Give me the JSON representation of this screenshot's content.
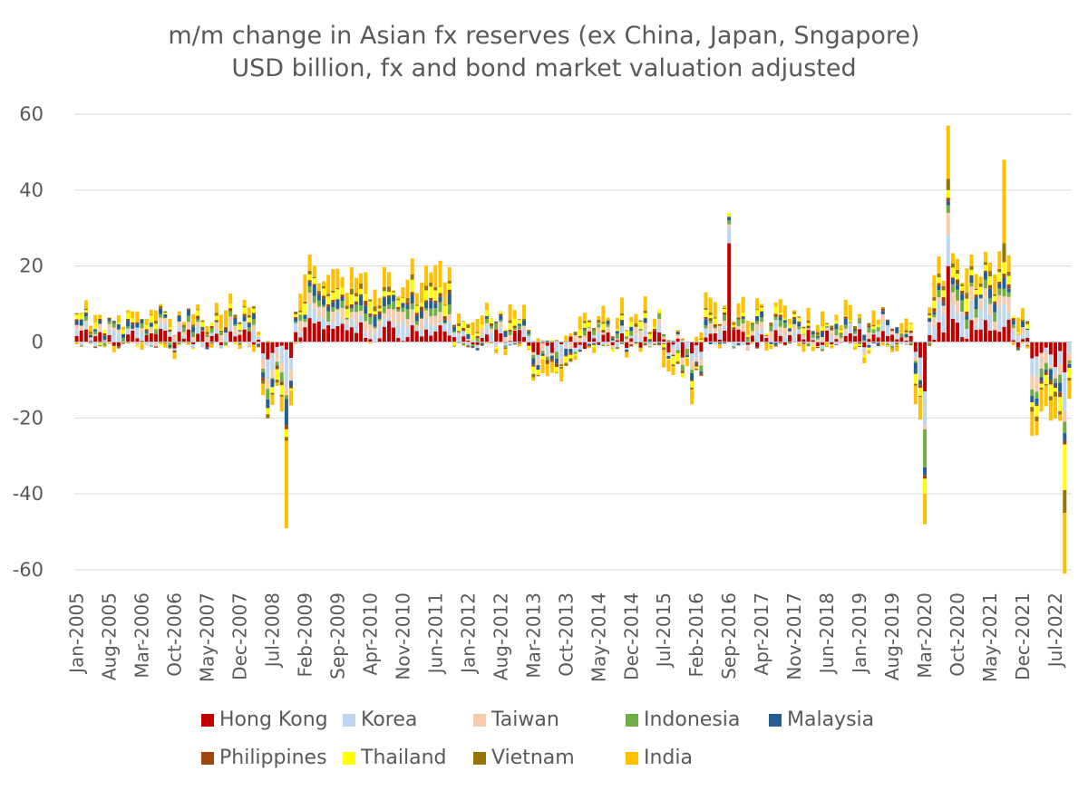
{
  "chart_data": {
    "type": "bar",
    "stacked": true,
    "title": "m/m change in Asian fx reserves (ex China, Japan, Sngapore)",
    "subtitle": "USD billion, fx and bond market valuation adjusted",
    "ylim": [
      -60,
      60
    ],
    "yticks": [
      60,
      40,
      20,
      0,
      -20,
      -40,
      -60
    ],
    "grid": true,
    "legend_position": "bottom",
    "x_start": "Jan-2005",
    "x_end": "Oct-2022",
    "x_tick_labels": [
      "Jan-2005",
      "Aug-2005",
      "Mar-2006",
      "Oct-2006",
      "May-2007",
      "Dec-2007",
      "Jul-2008",
      "Feb-2009",
      "Sep-2009",
      "Apr-2010",
      "Nov-2010",
      "Jun-2011",
      "Jan-2012",
      "Aug-2012",
      "Mar-2013",
      "Oct-2013",
      "May-2014",
      "Dec-2014",
      "Jul-2015",
      "Feb-2016",
      "Sep-2016",
      "Apr-2017",
      "Nov-2017",
      "Jun-2018",
      "Jan-2019",
      "Aug-2019",
      "Mar-2020",
      "Oct-2020",
      "May-2021",
      "Dec-2021",
      "Jul-2022"
    ],
    "series": [
      {
        "name": "Hong Kong",
        "color": "#C00000"
      },
      {
        "name": "Korea",
        "color": "#BDD7EE"
      },
      {
        "name": "Taiwan",
        "color": "#F8CBAD"
      },
      {
        "name": "Indonesia",
        "color": "#70AD47"
      },
      {
        "name": "Malaysia",
        "color": "#255E91"
      },
      {
        "name": "Philippines",
        "color": "#9E480E"
      },
      {
        "name": "Thailand",
        "color": "#FFFF00"
      },
      {
        "name": "Vietnam",
        "color": "#997300"
      },
      {
        "name": "India",
        "color": "#FFC000"
      }
    ],
    "notable_points": [
      {
        "month": "Oct-2008",
        "total_negative_approx": -49
      },
      {
        "month": "Aug-2020",
        "total_positive_approx": 57
      },
      {
        "month": "Aug-2021",
        "total_positive_approx": 49
      },
      {
        "month": "Mar-2020",
        "total_negative_approx": -48
      },
      {
        "month": "Sep-2022",
        "total_negative_approx": -60
      }
    ]
  }
}
